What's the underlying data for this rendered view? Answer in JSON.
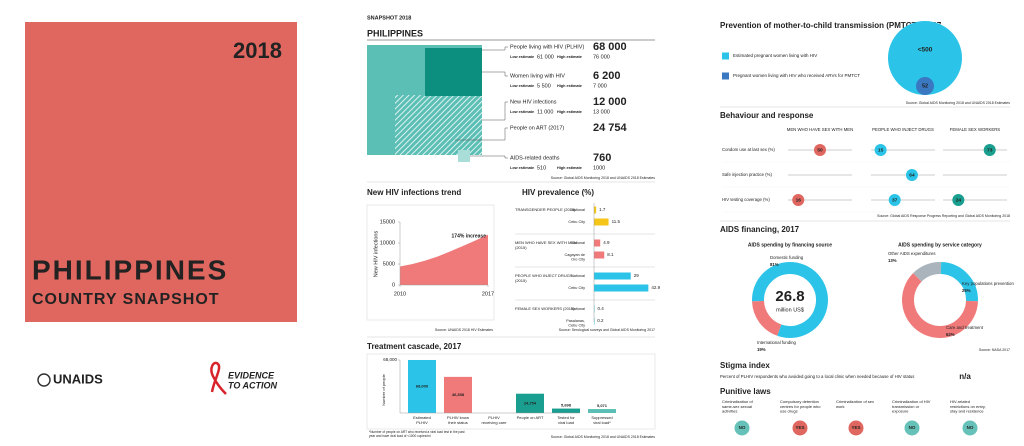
{
  "cover": {
    "year": "2018",
    "country": "PHILIPPINES",
    "subtitle": "COUNTRY SNAPSHOT"
  },
  "logos": {
    "unaids": "UNAIDS",
    "evidence": "EVIDENCE",
    "to_action": "TO ACTION"
  },
  "header": "SNAPSHOT 2018",
  "overview": {
    "title": "PHILIPPINES",
    "low_label": "Low estimate",
    "high_label": "High estimate",
    "items": [
      {
        "label": "People living with HIV (PLHIV)",
        "value": "68 000",
        "low": "61 000",
        "high": "76 000"
      },
      {
        "label": "Women living with HIV",
        "value": "6 200",
        "low": "5 500",
        "high": "7 000"
      },
      {
        "label": "New HIV infections",
        "value": "12 000",
        "low": "11 000",
        "high": "13 000"
      },
      {
        "label": "People on ART (2017)",
        "value": "24 754"
      },
      {
        "label": "AIDS-related  deaths",
        "value": "760",
        "low": "510",
        "high": "1000"
      }
    ],
    "source": "Source: Global AIDS Monitoring 2018 and UNAIDS 2018 Estimates"
  },
  "trend": {
    "type": "area",
    "title": "New HIV infections trend",
    "y_label": "New HIV infections",
    "annotation": "174% increase",
    "color": "#f07a7a",
    "x": [
      2010,
      2011,
      2012,
      2013,
      2014,
      2015,
      2016,
      2017
    ],
    "values": [
      4400,
      5000,
      5800,
      6800,
      8000,
      9300,
      10600,
      12000
    ],
    "xlim": [
      2010,
      2017
    ],
    "xticks": [
      2010,
      2017
    ],
    "ylim": [
      0,
      15000
    ],
    "yticks": [
      0,
      5000,
      10000,
      15000
    ],
    "source": "Source: UNAIDS 2018 HIV Estimates"
  },
  "prevalence": {
    "type": "bar",
    "title": "HIV prevalence (%)",
    "xlim": [
      0,
      45
    ],
    "groups": [
      {
        "name": "TRANSGENDER PEOPLE (2015)",
        "color": "#f5c518",
        "sites": [
          "National",
          "Cebu City"
        ],
        "values": [
          1.7,
          11.5
        ]
      },
      {
        "name": "MEN WHO HAVE SEX WITH MEN (2015)",
        "color": "#f07a7a",
        "sites": [
          "National",
          "Cagayan de Oro City"
        ],
        "values": [
          4.9,
          8.1
        ]
      },
      {
        "name": "PEOPLE WHO INJECT DRUGS (2015)",
        "color": "#2bc4e8",
        "sites": [
          "National",
          "Cebu City"
        ],
        "values": [
          29,
          42.9
        ]
      },
      {
        "name": "FEMALE SEX WORKERS (2015)",
        "color": "#2bc4e8",
        "sites": [
          "National",
          "Pasalanas, Cebu City"
        ],
        "values": [
          0.4,
          0.2
        ]
      }
    ],
    "source": "Source: Serological surveys and Global AIDS Monitoring 2017"
  },
  "cascade": {
    "type": "bar",
    "title": "Treatment cascade, 2017",
    "y_label": "Number of people",
    "categories": [
      "Estimated PLHIV",
      "PLHIV know their status",
      "PLHIV receiving care",
      "People on ART",
      "Tested for viral load",
      "Suppressed viral load*"
    ],
    "values": [
      68000,
      46358,
      null,
      24754,
      5698,
      5071
    ],
    "value_labels": [
      "68,000",
      "46,358",
      null,
      "24,754",
      "5,698",
      "5,071"
    ],
    "colors": [
      "#2bc4e8",
      "#f07a7a",
      "#2bc4e8",
      "#1a9e8f",
      "#1a9e8f",
      "#5bbfb5"
    ],
    "ylim": [
      0,
      68000
    ],
    "yticks": [
      {
        "value": 68000,
        "label": "68,000"
      }
    ],
    "footnote": "*Number of people on ART who received a viral load test in the past year and have viral load of <1000 copies/ml",
    "source": "Source: Global AIDS Monitoring 2018 and UNAIDS 2018 Estimates"
  },
  "pmtct": {
    "title": "Prevention of mother-to-child transmission (PMTCT), 2017",
    "items": [
      {
        "label": "Estimated pregnant women living with HIV",
        "value": "<500",
        "color": "#2bc4e8"
      },
      {
        "label": "Pregnant women living with HIV who received ARVs for PMTCT",
        "value": 52,
        "color": "#3b78c2"
      }
    ],
    "source": "Source: Global AIDS Monitoring 2018 and UNAIDS 2018 Estimates"
  },
  "behaviour": {
    "title": "Behaviour and response",
    "columns": [
      "MEN WHO HAVE SEX WITH MEN",
      "PEOPLE WHO INJECT DRUGS",
      "FEMALE SEX WORKERS"
    ],
    "colors": [
      "#e0675f",
      "#2bc4e8",
      "#1a9e8f"
    ],
    "xlim": [
      0,
      100
    ],
    "rows": [
      {
        "label": "Condom use at last sex (%)",
        "values": [
          50,
          15,
          73
        ]
      },
      {
        "label": "Safe injection practice (%)",
        "values": [
          null,
          64,
          null
        ]
      },
      {
        "label": "HIV testing coverage (%)",
        "values": [
          16,
          37,
          24
        ]
      }
    ],
    "source": "Source: Global AIDS Response Progress Reporting and Global AIDS Monitoring 2018"
  },
  "financing": {
    "title": "AIDS financing, 2017",
    "total": "26.8",
    "total_unit": "million US$",
    "charts": [
      {
        "type": "donut",
        "title": "AIDS spending by financing source",
        "segments": [
          {
            "name": "Domestic funding",
            "value": 81,
            "label": "81%",
            "color": "#2bc4e8"
          },
          {
            "name": "International funding",
            "value": 19,
            "label": "19%",
            "color": "#f07a7a"
          }
        ]
      },
      {
        "type": "donut",
        "title": "AIDS spending by service category",
        "segments": [
          {
            "name": "Other AIDS expenditures",
            "value": 13,
            "label": "13%",
            "color": "#a9b4bd"
          },
          {
            "name": "Key populations prevention",
            "value": 25,
            "label": "25%",
            "color": "#2bc4e8"
          },
          {
            "name": "Care and treatment",
            "value": 62,
            "label": "62%",
            "color": "#f07a7a"
          }
        ]
      }
    ],
    "source": "Source: NASA 2017"
  },
  "stigma": {
    "title": "Stigma index",
    "text": "Percent of PLHIV respondents who avoided going to a local clinic when needed because of HIV status",
    "value": "n/a"
  },
  "laws": {
    "title": "Punitive laws",
    "items": [
      {
        "label": "Criminalization of same-sex sexual activities",
        "value": "NO"
      },
      {
        "label": "Compulsory detention centres for people who use drugs",
        "value": "YES"
      },
      {
        "label": "Criminalization of sex work",
        "value": "YES"
      },
      {
        "label": "Criminalization of HIV transmission or exposure",
        "value": "NO"
      },
      {
        "label": "HIV-related restrictions on entry, stay and residence",
        "value": "NO"
      }
    ]
  }
}
